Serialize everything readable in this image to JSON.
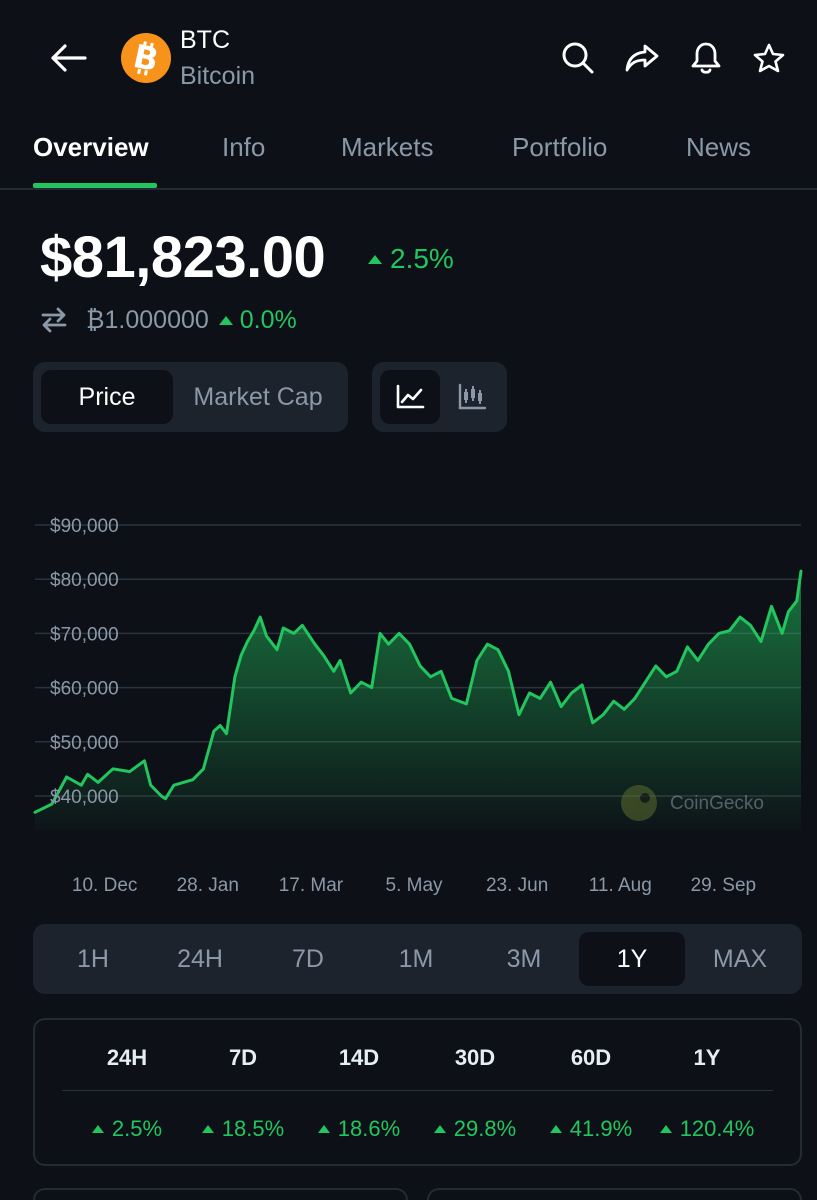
{
  "header": {
    "symbol": "BTC",
    "name": "Bitcoin",
    "icons": [
      "back-arrow-icon",
      "bitcoin-logo-icon",
      "search-icon",
      "share-icon",
      "bell-icon",
      "star-icon"
    ]
  },
  "tabs": [
    {
      "label": "Overview",
      "active": true
    },
    {
      "label": "Info",
      "active": false
    },
    {
      "label": "Markets",
      "active": false
    },
    {
      "label": "Portfolio",
      "active": false
    },
    {
      "label": "News",
      "active": false
    }
  ],
  "price": {
    "value": "$81,823.00",
    "change": "2.5%",
    "btc_value": "₿1.000000",
    "btc_change": "0.0%"
  },
  "chart_toggle": {
    "price_label": "Price",
    "market_cap_label": "Market Cap",
    "selected": "Price"
  },
  "chart_view_icons": [
    "line-chart-icon",
    "candlestick-chart-icon"
  ],
  "chart_data": {
    "type": "area",
    "y_tick_labels": [
      "$90,000",
      "$80,000",
      "$70,000",
      "$60,000",
      "$50,000",
      "$40,000"
    ],
    "y_ticks": [
      90000,
      80000,
      70000,
      60000,
      50000,
      40000
    ],
    "ylim": [
      35000,
      92000
    ],
    "x_tick_labels": [
      "10. Dec",
      "28. Jan",
      "17. Mar",
      "5. May",
      "23. Jun",
      "11. Aug",
      "29. Sep"
    ],
    "x_tick_days": [
      16,
      65,
      114,
      163,
      212,
      261,
      310
    ],
    "x_range_days": [
      0,
      364
    ],
    "grid": true,
    "legend": "none",
    "watermark": "CoinGecko",
    "line_color": "#22c55e",
    "series": [
      {
        "x": [
          0,
          8,
          15,
          22,
          25,
          30,
          37,
          45,
          52,
          55,
          60,
          62,
          66,
          75,
          80,
          85,
          88,
          91,
          95,
          98,
          101,
          104,
          107,
          110,
          115,
          118,
          123,
          127,
          133,
          137,
          142,
          145,
          150,
          155,
          160,
          164,
          168,
          173,
          178,
          183,
          188,
          193,
          198,
          205,
          210,
          215,
          220,
          225,
          230,
          235,
          240,
          245,
          250,
          255,
          260,
          265,
          270,
          275,
          280,
          285,
          290,
          295,
          300,
          305,
          310,
          315,
          320,
          325,
          330,
          335,
          340,
          345,
          350,
          355,
          358,
          362,
          364
        ],
        "y": [
          37000,
          38500,
          43500,
          42000,
          44000,
          42500,
          45000,
          44500,
          46500,
          42000,
          40000,
          39500,
          42000,
          43000,
          45000,
          52000,
          53000,
          51500,
          62000,
          66000,
          68500,
          70500,
          73000,
          69500,
          67000,
          71000,
          70000,
          71500,
          68000,
          66000,
          63000,
          65000,
          59000,
          61000,
          60000,
          70000,
          68000,
          70000,
          68000,
          64000,
          62000,
          63000,
          58000,
          57000,
          65000,
          68000,
          67000,
          63000,
          55000,
          59000,
          58000,
          61000,
          56500,
          59000,
          60500,
          53500,
          55000,
          57500,
          56000,
          58000,
          61000,
          64000,
          62000,
          63000,
          67500,
          65000,
          68000,
          70000,
          70500,
          73000,
          71500,
          68500,
          75000,
          70000,
          74000,
          76000,
          81500
        ]
      }
    ]
  },
  "time_ranges": [
    {
      "label": "1H",
      "active": false
    },
    {
      "label": "24H",
      "active": false
    },
    {
      "label": "7D",
      "active": false
    },
    {
      "label": "1M",
      "active": false
    },
    {
      "label": "3M",
      "active": false
    },
    {
      "label": "1Y",
      "active": true
    },
    {
      "label": "MAX",
      "active": false
    }
  ],
  "performance": {
    "periods": [
      "24H",
      "7D",
      "14D",
      "30D",
      "60D",
      "1Y"
    ],
    "changes": [
      "2.5%",
      "18.5%",
      "18.6%",
      "29.8%",
      "41.9%",
      "120.4%"
    ]
  }
}
